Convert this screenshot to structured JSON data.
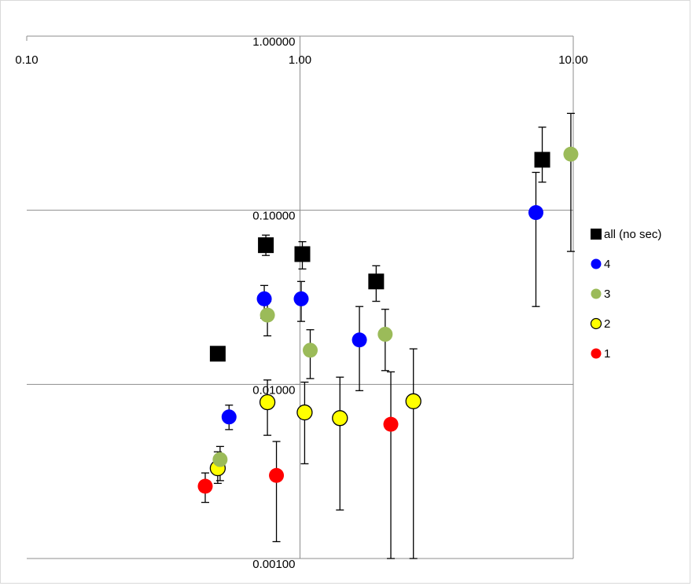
{
  "chart_data": {
    "type": "scatter",
    "x_scale": "log",
    "y_scale": "log",
    "xlim": [
      0.1,
      10
    ],
    "ylim": [
      0.001,
      1
    ],
    "x_ticks": [
      0.1,
      1,
      10
    ],
    "x_tick_labels": [
      "0.10",
      "1.00",
      "10.00"
    ],
    "y_ticks": [
      0.001,
      0.01,
      0.1,
      1
    ],
    "y_tick_labels": [
      "0.00100",
      "0.01000",
      "0.10000",
      "1.00000"
    ],
    "x_axis_position": "top",
    "y_axis_crosses_at_x": 1,
    "grid": {
      "horizontal": true,
      "vertical": true
    },
    "legend_position": "right",
    "series": [
      {
        "name": "all (no sec)",
        "marker": "square",
        "color": "#000000",
        "points": [
          {
            "x": 0.5,
            "y": 0.015,
            "lo": null,
            "hi": null
          },
          {
            "x": 0.75,
            "y": 0.063,
            "lo": 0.055,
            "hi": 0.072
          },
          {
            "x": 1.02,
            "y": 0.056,
            "lo": 0.046,
            "hi": 0.066
          },
          {
            "x": 1.9,
            "y": 0.039,
            "lo": 0.03,
            "hi": 0.048
          },
          {
            "x": 7.7,
            "y": 0.195,
            "lo": 0.145,
            "hi": 0.3
          }
        ]
      },
      {
        "name": "4",
        "marker": "circle",
        "color": "#0000ff",
        "points": [
          {
            "x": 0.55,
            "y": 0.0065,
            "lo": 0.0055,
            "hi": 0.0076
          },
          {
            "x": 0.74,
            "y": 0.031,
            "lo": 0.024,
            "hi": 0.037
          },
          {
            "x": 1.01,
            "y": 0.031,
            "lo": 0.023,
            "hi": 0.039
          },
          {
            "x": 1.65,
            "y": 0.018,
            "lo": 0.0092,
            "hi": 0.028
          },
          {
            "x": 7.3,
            "y": 0.097,
            "lo": 0.028,
            "hi": 0.165
          }
        ]
      },
      {
        "name": "3",
        "marker": "circle",
        "color": "#9bbb59",
        "points": [
          {
            "x": 0.51,
            "y": 0.0037,
            "lo": 0.0028,
            "hi": 0.0044
          },
          {
            "x": 0.76,
            "y": 0.025,
            "lo": 0.019,
            "hi": 0.03
          },
          {
            "x": 1.09,
            "y": 0.0157,
            "lo": 0.0108,
            "hi": 0.0206
          },
          {
            "x": 2.05,
            "y": 0.0194,
            "lo": 0.012,
            "hi": 0.027
          },
          {
            "x": 9.8,
            "y": 0.21,
            "lo": 0.058,
            "hi": 0.36
          }
        ]
      },
      {
        "name": "2",
        "marker": "circle",
        "color": "#ffff00",
        "points": [
          {
            "x": 0.5,
            "y": 0.0033,
            "lo": 0.0027,
            "hi": 0.0041
          },
          {
            "x": 0.76,
            "y": 0.0079,
            "lo": 0.0051,
            "hi": 0.0106
          },
          {
            "x": 1.04,
            "y": 0.0069,
            "lo": 0.0035,
            "hi": 0.0103
          },
          {
            "x": 1.4,
            "y": 0.0064,
            "lo": 0.0019,
            "hi": 0.011
          },
          {
            "x": 2.6,
            "y": 0.008,
            "lo": 0.001,
            "hi": 0.016
          }
        ]
      },
      {
        "name": "1",
        "marker": "circle",
        "color": "#ff0000",
        "points": [
          {
            "x": 0.45,
            "y": 0.0026,
            "lo": 0.0021,
            "hi": 0.0031
          },
          {
            "x": 0.82,
            "y": 0.003,
            "lo": 0.00125,
            "hi": 0.0047
          },
          {
            "x": 2.15,
            "y": 0.0059,
            "lo": 0.001,
            "hi": 0.0118
          }
        ]
      }
    ]
  }
}
